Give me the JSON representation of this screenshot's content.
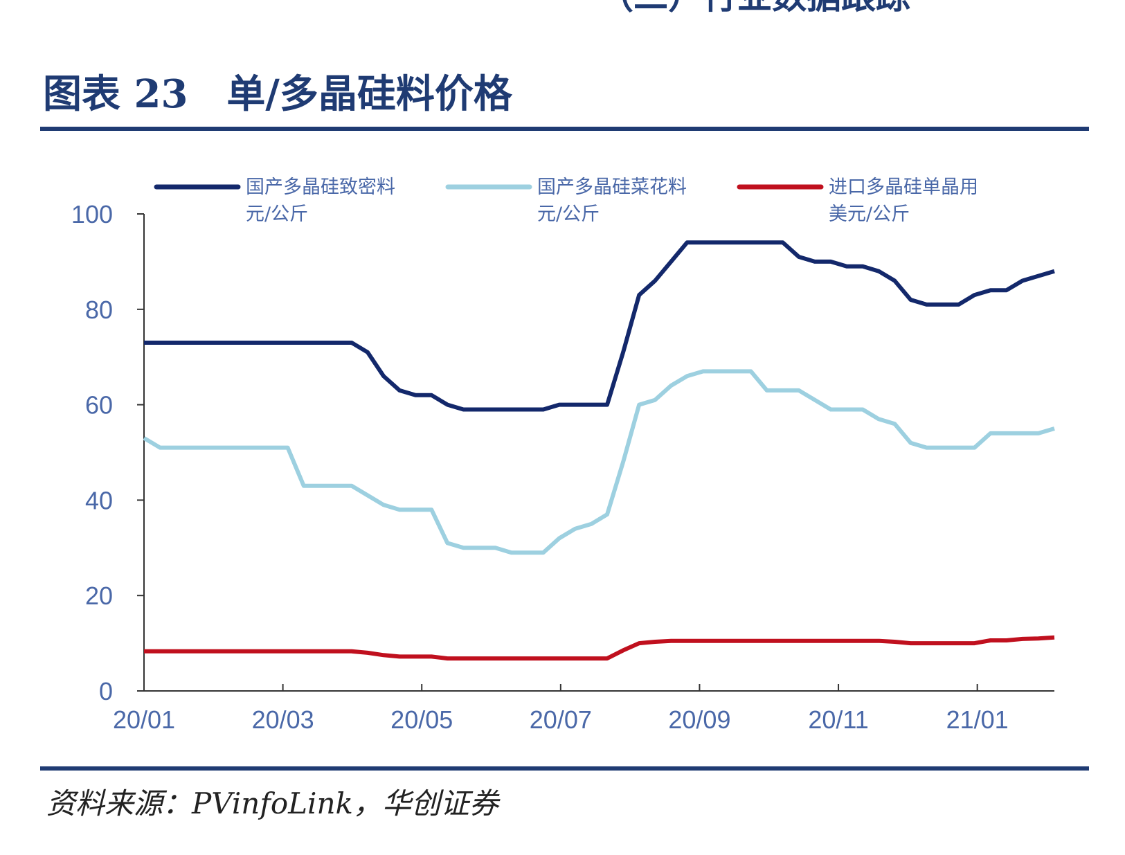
{
  "header": {
    "section": "（二）行业数据跟踪",
    "title": "图表 23　单/多晶硅料价格"
  },
  "chart_data": {
    "type": "line",
    "x": [
      0,
      0.23,
      0.46,
      0.69,
      0.92,
      1.15,
      1.38,
      1.61,
      1.84,
      2.07,
      2.3,
      2.53,
      2.76,
      2.99,
      3.22,
      3.45,
      3.68,
      3.91,
      4.14,
      4.37,
      4.6,
      4.83,
      5.06,
      5.29,
      5.52,
      5.75,
      5.98,
      6.21,
      6.44,
      6.67,
      6.9,
      7.13,
      7.36,
      7.59,
      7.82,
      8.05,
      8.28,
      8.51,
      8.74,
      8.97,
      9.2,
      9.43,
      9.66,
      9.89,
      10.12,
      10.35,
      10.58,
      10.81,
      11.04,
      11.27,
      11.5,
      11.73,
      11.96,
      12.19,
      12.42,
      12.65,
      12.88,
      13.11
    ],
    "xlim": [
      0,
      13.11
    ],
    "xticks": [
      {
        "value": 0,
        "label": "20/01"
      },
      {
        "value": 2,
        "label": "20/03"
      },
      {
        "value": 4,
        "label": "20/05"
      },
      {
        "value": 6,
        "label": "20/07"
      },
      {
        "value": 8,
        "label": "20/09"
      },
      {
        "value": 10,
        "label": "20/11"
      },
      {
        "value": 12,
        "label": "21/01"
      }
    ],
    "ylim": [
      0,
      100
    ],
    "yticks": [
      0,
      20,
      40,
      60,
      80,
      100
    ],
    "series": [
      {
        "name": "国产多晶硅致密料",
        "unit": "元/公斤",
        "color": "#13286b",
        "values": [
          73,
          73,
          73,
          73,
          73,
          73,
          73,
          73,
          73,
          73,
          73,
          73,
          73,
          73,
          71,
          66,
          63,
          62,
          62,
          60,
          59,
          59,
          59,
          59,
          59,
          59,
          60,
          60,
          60,
          60,
          71,
          83,
          86,
          90,
          94,
          94,
          94,
          94,
          94,
          94,
          94,
          91,
          90,
          90,
          89,
          89,
          88,
          86,
          82,
          81,
          81,
          81,
          83,
          84,
          84,
          86,
          87,
          88
        ]
      },
      {
        "name": "国产多晶硅菜花料",
        "unit": "元/公斤",
        "color": "#9dd0e0",
        "values": [
          53,
          51,
          51,
          51,
          51,
          51,
          51,
          51,
          51,
          51,
          43,
          43,
          43,
          43,
          41,
          39,
          38,
          38,
          38,
          31,
          30,
          30,
          30,
          29,
          29,
          29,
          32,
          34,
          35,
          37,
          48,
          60,
          61,
          64,
          66,
          67,
          67,
          67,
          67,
          63,
          63,
          63,
          61,
          59,
          59,
          59,
          57,
          56,
          52,
          51,
          51,
          51,
          51,
          54,
          54,
          54,
          54,
          55
        ]
      },
      {
        "name": "进口多晶硅单晶用",
        "unit": "美元/公斤",
        "color": "#c0101e",
        "values": [
          8.3,
          8.3,
          8.3,
          8.3,
          8.3,
          8.3,
          8.3,
          8.3,
          8.3,
          8.3,
          8.3,
          8.3,
          8.3,
          8.3,
          8,
          7.5,
          7.2,
          7.2,
          7.2,
          6.8,
          6.8,
          6.8,
          6.8,
          6.8,
          6.8,
          6.8,
          6.8,
          6.8,
          6.8,
          6.8,
          8.5,
          10,
          10.3,
          10.5,
          10.5,
          10.5,
          10.5,
          10.5,
          10.5,
          10.5,
          10.5,
          10.5,
          10.5,
          10.5,
          10.5,
          10.5,
          10.5,
          10.3,
          10,
          10,
          10,
          10,
          10,
          10.6,
          10.6,
          10.9,
          11,
          11.2
        ]
      }
    ]
  },
  "source": "资料来源：PVinfoLink，华创证券"
}
